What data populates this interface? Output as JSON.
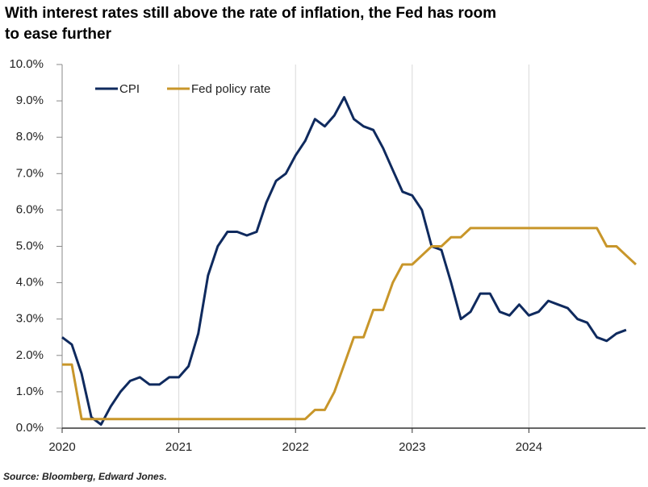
{
  "chart_data": {
    "type": "line",
    "title": "With interest rates still above the rate of inflation, the Fed has room to ease further",
    "source": "Source: Bloomberg, Edward Jones.",
    "x": [
      2020,
      2020.083,
      2020.167,
      2020.25,
      2020.333,
      2020.417,
      2020.5,
      2020.583,
      2020.667,
      2020.75,
      2020.833,
      2020.917,
      2021,
      2021.083,
      2021.167,
      2021.25,
      2021.333,
      2021.417,
      2021.5,
      2021.583,
      2021.667,
      2021.75,
      2021.833,
      2021.917,
      2022,
      2022.083,
      2022.167,
      2022.25,
      2022.333,
      2022.417,
      2022.5,
      2022.583,
      2022.667,
      2022.75,
      2022.833,
      2022.917,
      2023,
      2023.083,
      2023.167,
      2023.25,
      2023.333,
      2023.417,
      2023.5,
      2023.583,
      2023.667,
      2023.75,
      2023.833,
      2023.917,
      2024,
      2024.083,
      2024.167,
      2024.25,
      2024.333,
      2024.417,
      2024.5,
      2024.583,
      2024.667,
      2024.75,
      2024.833,
      2024.917
    ],
    "series": [
      {
        "name": "CPI",
        "color": "#0f2a5e",
        "values": [
          2.5,
          2.3,
          1.5,
          0.3,
          0.1,
          0.6,
          1.0,
          1.3,
          1.4,
          1.2,
          1.2,
          1.4,
          1.4,
          1.7,
          2.6,
          4.2,
          5.0,
          5.4,
          5.4,
          5.3,
          5.4,
          6.2,
          6.8,
          7.0,
          7.5,
          7.9,
          8.5,
          8.3,
          8.6,
          9.1,
          8.5,
          8.3,
          8.2,
          7.7,
          7.1,
          6.5,
          6.4,
          6.0,
          5.0,
          4.9,
          4.0,
          3.0,
          3.2,
          3.7,
          3.7,
          3.2,
          3.1,
          3.4,
          3.1,
          3.2,
          3.5,
          3.4,
          3.3,
          3.0,
          2.9,
          2.5,
          2.4,
          2.6,
          2.7,
          null
        ]
      },
      {
        "name": "Fed policy rate",
        "color": "#c8962a",
        "values": [
          1.75,
          1.75,
          0.25,
          0.25,
          0.25,
          0.25,
          0.25,
          0.25,
          0.25,
          0.25,
          0.25,
          0.25,
          0.25,
          0.25,
          0.25,
          0.25,
          0.25,
          0.25,
          0.25,
          0.25,
          0.25,
          0.25,
          0.25,
          0.25,
          0.25,
          0.25,
          0.5,
          0.5,
          1.0,
          1.75,
          2.5,
          2.5,
          3.25,
          3.25,
          4.0,
          4.5,
          4.5,
          4.75,
          5.0,
          5.0,
          5.25,
          5.25,
          5.5,
          5.5,
          5.5,
          5.5,
          5.5,
          5.5,
          5.5,
          5.5,
          5.5,
          5.5,
          5.5,
          5.5,
          5.5,
          5.5,
          5.0,
          5.0,
          4.75,
          4.5
        ]
      }
    ],
    "xlim": [
      2020,
      2025
    ],
    "xticks": [
      2020,
      2021,
      2022,
      2023,
      2024
    ],
    "ylim": [
      0,
      10
    ],
    "yticks": [
      {
        "value": 0,
        "label": "0.0%"
      },
      {
        "value": 1,
        "label": "1.0%"
      },
      {
        "value": 2,
        "label": "2.0%"
      },
      {
        "value": 3,
        "label": "3.0%"
      },
      {
        "value": 4,
        "label": "4.0%"
      },
      {
        "value": 5,
        "label": "5.0%"
      },
      {
        "value": 6,
        "label": "6.0%"
      },
      {
        "value": 7,
        "label": "7.0%"
      },
      {
        "value": 8,
        "label": "8.0%"
      },
      {
        "value": 9,
        "label": "9.0%"
      },
      {
        "value": 10,
        "label": "10.0%"
      }
    ],
    "grid": "x",
    "legend": "upper left"
  }
}
